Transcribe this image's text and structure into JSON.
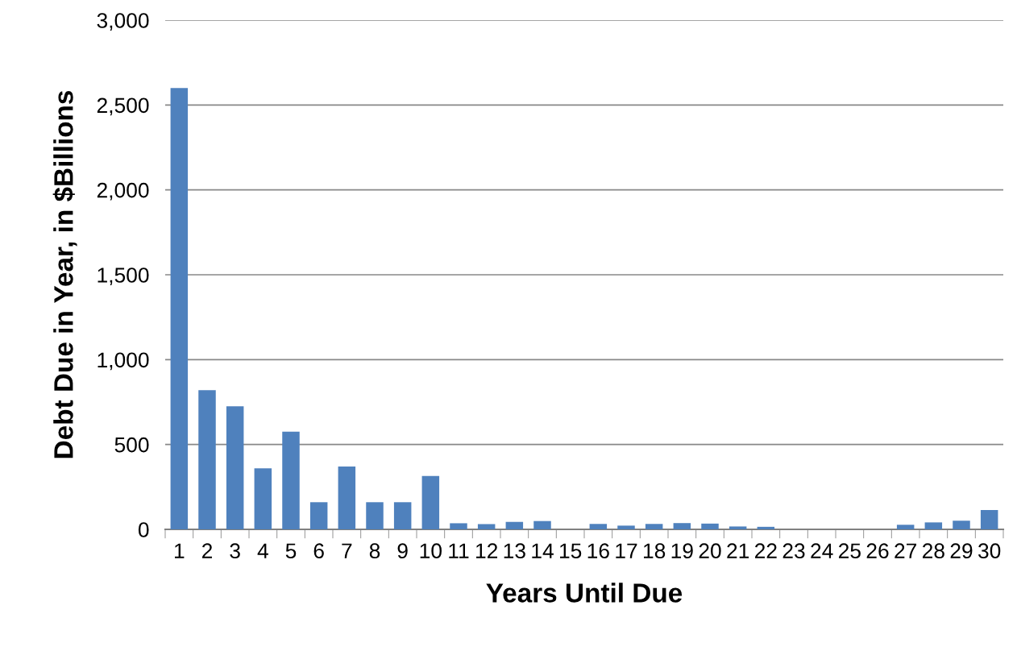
{
  "chart_data": {
    "type": "bar",
    "xlabel": "Years Until Due",
    "ylabel": "Debt Due in Year, in $Billions",
    "categories": [
      "1",
      "2",
      "3",
      "4",
      "5",
      "6",
      "7",
      "8",
      "9",
      "10",
      "11",
      "12",
      "13",
      "14",
      "15",
      "16",
      "17",
      "18",
      "19",
      "20",
      "21",
      "22",
      "23",
      "24",
      "25",
      "26",
      "27",
      "28",
      "29",
      "30"
    ],
    "values": [
      2600,
      820,
      725,
      360,
      575,
      160,
      370,
      160,
      160,
      315,
      36,
      31,
      44,
      49,
      0,
      32,
      22,
      32,
      37,
      34,
      17,
      15,
      0,
      0,
      0,
      0,
      27,
      41,
      51,
      114
    ],
    "color": "#4f81bd",
    "ylim": [
      0,
      3000
    ],
    "yticks": [
      0,
      {
        "value": 500,
        "label": "500"
      },
      {
        "value": 1000,
        "label": "1,000"
      },
      {
        "value": 1500,
        "label": "1,500"
      },
      {
        "value": 2000,
        "label": "2,000"
      },
      {
        "value": 2500,
        "label": "2,500"
      },
      {
        "value": 3000,
        "label": "3,000"
      }
    ],
    "grid": "y"
  }
}
